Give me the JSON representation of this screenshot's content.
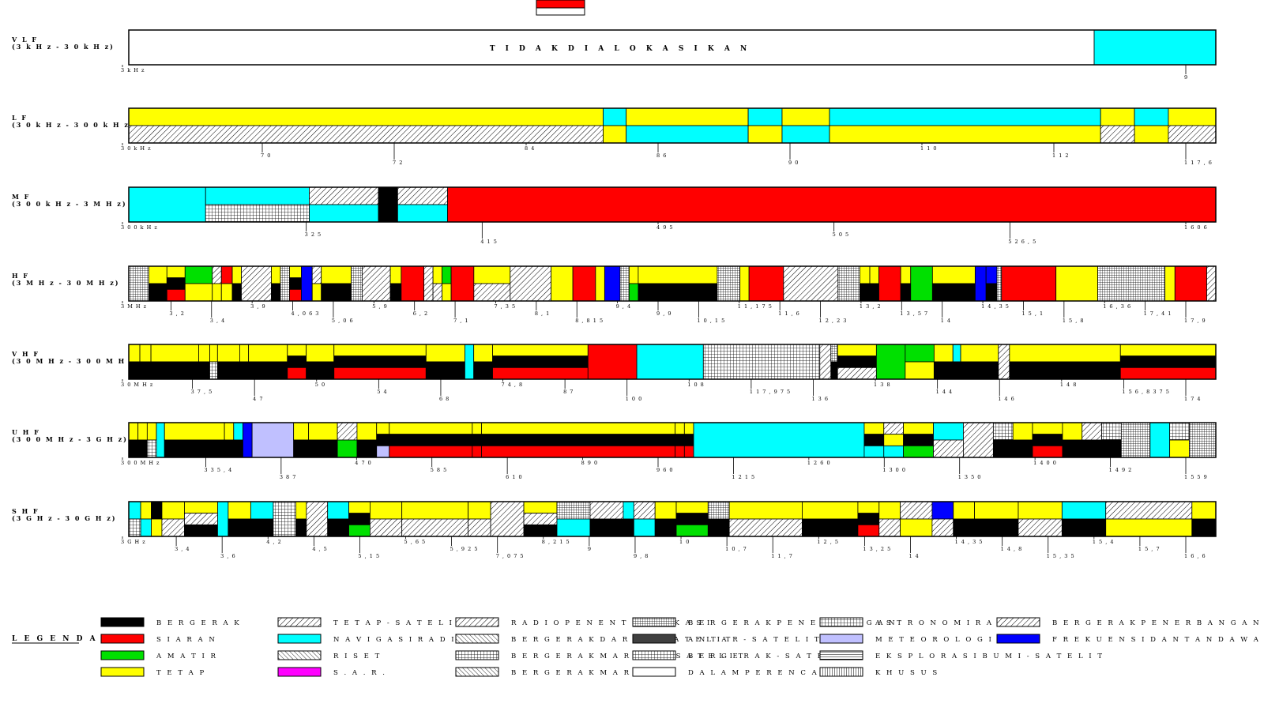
{
  "bands": [
    {
      "id": "vlf",
      "name": "V L F",
      "range": "(3 k H z - 3 0 k H z)",
      "segments": [
        [
          "white",
          1
        ],
        [
          "cyan",
          0.126
        ]
      ],
      "label": "T I D A K   D I A L O K A S I K A N",
      "ticks": [
        "3 k H z",
        "9"
      ]
    },
    {
      "id": "lf",
      "name": "L F",
      "range": "(3 0 k H z - 3 0 0 k H z)",
      "segments": [
        [
          "yellow/fixsat",
          7
        ],
        [
          "cyan/yellow",
          0.34
        ],
        [
          "yellow/cyan",
          1.8
        ],
        [
          "cyan/yellow",
          0.5
        ],
        [
          "yellow/cyan",
          0.7
        ],
        [
          "cyan/yellow",
          4
        ],
        [
          "yellow/fixsat",
          0.5
        ],
        [
          "cyan/yellow",
          0.5
        ],
        [
          "yellow/fixsat",
          0.7
        ]
      ],
      "ticks": [
        "3 0 k H z",
        "7 0",
        "7 2",
        "8 4",
        "8 6",
        "9 0",
        "1 1 0",
        "1 1 2",
        "1 1 7 , 6"
      ]
    },
    {
      "id": "mf",
      "name": "M F",
      "range": "(3 0 0 k H z - 3 M H z)",
      "segments": [
        [
          "cyan",
          1
        ],
        [
          "cyan/mar",
          1.35
        ],
        [
          "fixsat/cyan",
          0.9
        ],
        [
          "black",
          0.25
        ],
        [
          "fixsat/cyan",
          0.65
        ],
        [
          "red",
          10
        ]
      ],
      "ticks": [
        "3 0 0 k H z",
        "3 2 5",
        "4 1 5",
        "4 9 5",
        "5 0 5",
        "5 2 6 , 5",
        "1 6 0 6"
      ]
    },
    {
      "id": "hf",
      "name": "H F",
      "range": "(3 M H z - 3 0 M H z)",
      "segments": [
        [
          "aero",
          2.2
        ],
        [
          "yellow/black",
          2
        ],
        [
          "yellow/black/red",
          2
        ],
        [
          "green/yellow",
          3
        ],
        [
          "fixsat/yellow",
          1
        ],
        [
          "red/yellow",
          1.2
        ],
        [
          "yellow/black",
          1
        ],
        [
          "fixsat",
          3.3
        ],
        [
          "yellow/black",
          1
        ],
        [
          "aero",
          1
        ],
        [
          "yellow/black/red",
          1.3
        ],
        [
          "blue",
          1.2
        ],
        [
          "fixsat/yellow",
          1
        ],
        [
          "yellow/black",
          3.3
        ],
        [
          "aero",
          1.2
        ],
        [
          "fixsat",
          3.1
        ],
        [
          "yellow/black",
          1.2
        ],
        [
          "red",
          2.5
        ],
        [
          "fixsat",
          1
        ],
        [
          "yellow/fixsat",
          1
        ],
        [
          "green/yellow",
          1
        ],
        [
          "red",
          2.5
        ],
        [
          "yellow/fixsat",
          4
        ],
        [
          "fixsat",
          4.5
        ],
        [
          "yellow",
          2.4
        ],
        [
          "red",
          2.5
        ],
        [
          "yellow",
          1
        ],
        [
          "blue",
          1.7
        ],
        [
          "aero",
          1
        ],
        [
          "yellow/green",
          1
        ],
        [
          "yellow/black",
          8.7
        ],
        [
          "aero",
          2.5
        ],
        [
          "yellow",
          1
        ],
        [
          "red",
          3.8
        ],
        [
          "fixsat",
          6
        ],
        [
          "aero",
          2.4
        ],
        [
          "yellow/black",
          1.1
        ],
        [
          "yellow/black",
          1
        ],
        [
          "red",
          2.4
        ],
        [
          "yellow/black",
          1.1
        ],
        [
          "green",
          2.4
        ],
        [
          "yellow/black",
          4.7
        ],
        [
          "blue",
          1.2
        ],
        [
          "blue/black",
          1.2
        ],
        [
          "aero",
          0.5
        ],
        [
          "red",
          6
        ],
        [
          "yellow",
          4.6
        ],
        [
          "aero",
          7.4
        ],
        [
          "yellow",
          1.1
        ],
        [
          "red",
          3.5
        ],
        [
          "fixsat",
          1
        ]
      ],
      "ticks": [
        "3 M H z",
        "3 , 2",
        "3 , 4",
        "3 , 9",
        "4 , 0 6 3",
        "5 , 0 6",
        "5 , 9",
        "6 , 2",
        "7 , 1",
        "7 , 3 5",
        "8 , 1",
        "8 , 8 1 5",
        "9 , 4",
        "9 , 9",
        "1 0 , 1 5",
        "1 1 , 1 7 5",
        "1 1 , 6",
        "1 2 , 2 3",
        "1 3 , 2",
        "1 3 , 5 7",
        "1 4",
        "1 4 , 3 5",
        "1 5 , 1",
        "1 5 , 8",
        "1 6 , 3 6",
        "1 7 , 4 1",
        "1 7 , 9"
      ]
    },
    {
      "id": "vhf",
      "name": "V H F",
      "range": "(3 0 M H z - 3 0 0 M H z)",
      "segments": [
        [
          "yellow/black",
          1
        ],
        [
          "yellow/black",
          1
        ],
        [
          "yellow/black",
          4.3
        ],
        [
          "yellow/black",
          1
        ],
        [
          "yellow/mar",
          0.7
        ],
        [
          "yellow/black",
          2
        ],
        [
          "yellow/black",
          0.8
        ],
        [
          "yellow/black",
          3.5
        ],
        [
          "yellow/black/red",
          1.7
        ],
        [
          "yellow/black",
          2.5
        ],
        [
          "yellow/black/red",
          8.3
        ],
        [
          "yellow/black",
          3.5
        ],
        [
          "cyan",
          0.8
        ],
        [
          "yellow/black",
          1.7
        ],
        [
          "yellow/black/red",
          8.6
        ],
        [
          "red",
          4.4
        ],
        [
          "cyan",
          6
        ],
        [
          "mar",
          10.5
        ],
        [
          "fixsat",
          1
        ],
        [
          "aero/black",
          0.6
        ],
        [
          "yellow/black/fixsat",
          3.5
        ],
        [
          "green",
          2.6
        ],
        [
          "green/yellow",
          2.6
        ],
        [
          "yellow/black",
          1.7
        ],
        [
          "cyan/black",
          0.7
        ],
        [
          "yellow/black",
          3.4
        ],
        [
          "fixsat",
          1
        ],
        [
          "yellow/black",
          10
        ],
        [
          "yellow/black/red",
          8.6
        ]
      ],
      "ticks": [
        "3 0 M H z",
        "3 7 , 5",
        "4 7",
        "5 0",
        "5 4",
        "6 8",
        "7 4 , 8",
        "8 7",
        "1 0 0",
        "1 0 8",
        "1 1 7 , 9 7 5",
        "1 3 6",
        "1 3 8",
        "1 4 4",
        "1 4 6",
        "1 4 8",
        "1 5 6 , 8 3 7 5",
        "1 7 4"
      ]
    },
    {
      "id": "uhf",
      "name": "U H F",
      "range": "(3 0 0 M H z - 3 G H z)",
      "segments": [
        [
          "yellow/black",
          0.8
        ],
        [
          "yellow/black",
          0.8
        ],
        [
          "yellow/mar",
          0.8
        ],
        [
          "cyan",
          0.7
        ],
        [
          "yellow/black",
          5.2
        ],
        [
          "yellow/black",
          0.8
        ],
        [
          "cyan/black",
          0.8
        ],
        [
          "blue",
          0.8
        ],
        [
          "meteo",
          3.6
        ],
        [
          "yellow/black",
          1.3
        ],
        [
          "yellow/black",
          2.5
        ],
        [
          "fixsat/green",
          1.7
        ],
        [
          "yellow/black",
          1.7
        ],
        [
          "yellow/black/meteo",
          1.1
        ],
        [
          "yellow/black/red",
          7.2
        ],
        [
          "yellow/black/red",
          0.8
        ],
        [
          "yellow/black/red",
          16.8
        ],
        [
          "yellow/black/red",
          0.8
        ],
        [
          "yellow/black/red",
          0.8
        ],
        [
          "cyan",
          14.8
        ],
        [
          "yellow/black/cyan",
          1.7
        ],
        [
          "fixsat/yellow/cyan",
          1.7
        ],
        [
          "yellow/black/green",
          2.6
        ],
        [
          "cyan/fixsat",
          2.6
        ],
        [
          "fixsat",
          2.6
        ],
        [
          "mar/black",
          1.7
        ],
        [
          "yellow/black",
          1.7
        ],
        [
          "yellow/black/red",
          2.6
        ],
        [
          "yellow/black",
          1.7
        ],
        [
          "fixsat/black",
          1.7
        ],
        [
          "mar/black",
          1.7
        ],
        [
          "aero",
          2.5
        ],
        [
          "cyan",
          1.7
        ],
        [
          "mar/yellow",
          1.7
        ],
        [
          "aero",
          2.3
        ]
      ],
      "ticks": [
        "3 0 0 M H z",
        "3 3 5 , 4",
        "3 8 7",
        "4 7 0",
        "5 8 5",
        "6 1 0",
        "8 9 0",
        "9 6 0",
        "1 2 1 5",
        "1 2 6 0",
        "1 3 0 0",
        "1 3 5 0",
        "1 4 0 0",
        "1 4 9 2",
        "1 5 5 9"
      ]
    },
    {
      "id": "shf",
      "name": "S H F",
      "range": "(3 G H z - 3 0 G H z)",
      "segments": [
        [
          "cyan/mar",
          0.9
        ],
        [
          "yellow/cyan",
          0.8
        ],
        [
          "black/yellow",
          0.8
        ],
        [
          "yellow/fixsat",
          1.7
        ],
        [
          "yellow/fixsat/black",
          2.5
        ],
        [
          "cyan",
          0.8
        ],
        [
          "yellow/black",
          1.7
        ],
        [
          "cyan/black",
          1.7
        ],
        [
          "mar",
          1.7
        ],
        [
          "yellow/black",
          0.8
        ],
        [
          "fixsat",
          1.6
        ],
        [
          "cyan/black",
          1.6
        ],
        [
          "yellow/black/green",
          1.6
        ],
        [
          "yellow/fixsat",
          2.4
        ],
        [
          "yellow/fixsat",
          5
        ],
        [
          "yellow/fixsat",
          1.7
        ],
        [
          "fixsat",
          2.5
        ],
        [
          "yellow/fixsat/black",
          2.5
        ],
        [
          "aero/cyan",
          2.5
        ],
        [
          "fixsat/black",
          2.5
        ],
        [
          "cyan/black",
          0.8
        ],
        [
          "fixsat/cyan",
          1.6
        ],
        [
          "yellow/black",
          1.6
        ],
        [
          "yellow/black/green",
          2.4
        ],
        [
          "aero/black",
          1.6
        ],
        [
          "yellow/fixsat",
          5.5
        ],
        [
          "yellow/black",
          4.2
        ],
        [
          "yellow/black/red",
          1.6
        ],
        [
          "yellow/fixsat",
          1.6
        ],
        [
          "fixsat/yellow",
          2.4
        ],
        [
          "blue/fixsat",
          1.6
        ],
        [
          "yellow/black",
          1.6
        ],
        [
          "yellow/black",
          3.3
        ],
        [
          "yellow/fixsat",
          3.3
        ],
        [
          "cyan/black",
          3.3
        ],
        [
          "fixsat/yellow",
          6.5
        ],
        [
          "yellow/black",
          1.8
        ]
      ],
      "ticks": [
        "3 G H z",
        "3 , 4",
        "3 , 6",
        "4 , 2",
        "4 , 5",
        "5 , 1 5",
        "5 , 6 5",
        "5 , 9 2 5",
        "7 , 0 7 5",
        "8 , 2 1 5",
        "9",
        "9 , 8",
        "1 0",
        "1 0 , 7",
        "1 1 , 7",
        "1 2 , 5",
        "1 3 , 2 5",
        "1 4",
        "1 4 , 3 5",
        "1 4 , 8",
        "1 5 , 3 5",
        "1 5 , 4",
        "1 5 , 7",
        "1 6 , 6"
      ]
    }
  ],
  "legend": {
    "title": "L E G E N D A",
    "items": [
      {
        "pattern": "black",
        "text": "B E R G E R A K"
      },
      {
        "pattern": "red",
        "text": "S I A R A N"
      },
      {
        "pattern": "green",
        "text": "A M A T I R"
      },
      {
        "pattern": "yellow",
        "text": "T E T A P"
      },
      {
        "pattern": "fixsat",
        "text": "T E T A P - S A T E L I T"
      },
      {
        "pattern": "cyan",
        "text": "N A V I G A S I R A D I O"
      },
      {
        "pattern": "research",
        "text": "R I S E T"
      },
      {
        "pattern": "magenta",
        "text": "S . A . R ."
      },
      {
        "pattern": "radiodet",
        "text": "R A D I O   P E N E N T U   /   L O K A S I"
      },
      {
        "pattern": "landsat",
        "text": "B E R G E R A K   D A R A T   /   S A T E L I T"
      },
      {
        "pattern": "mar",
        "text": "B E R G E R A K   M A R I T I M   S A T E L I T"
      },
      {
        "pattern": "maritime",
        "text": "B E R G E R A K   M A R I T I M"
      },
      {
        "pattern": "aero",
        "text": "B E R G E R A K   P E N E R B A N G A N"
      },
      {
        "pattern": "darkgray",
        "text": "A N T A R - S A T E L I T"
      },
      {
        "pattern": "mobsat",
        "text": "B E R G E R A K - S A T E L I T"
      },
      {
        "pattern": "white",
        "text": "D A L A M   P E R E N C A N A A N"
      },
      {
        "pattern": "astro",
        "text": "A S T R O N O M I R A D I O"
      },
      {
        "pattern": "meteo",
        "text": "M E T E O R O L O G I"
      },
      {
        "pattern": "eesat",
        "text": "E K S P L O R A S I B U M I - S A T E L I T"
      },
      {
        "pattern": "special",
        "text": "K H U S U S"
      },
      {
        "pattern": "aerosat",
        "text": "B E R G E R A K   P E N E R B A N G A N - S A T E L I T"
      },
      {
        "pattern": "blue",
        "text": "F R E K U E N S I D A N   T A N D A   W A K T U   S T A N D A R"
      }
    ]
  }
}
